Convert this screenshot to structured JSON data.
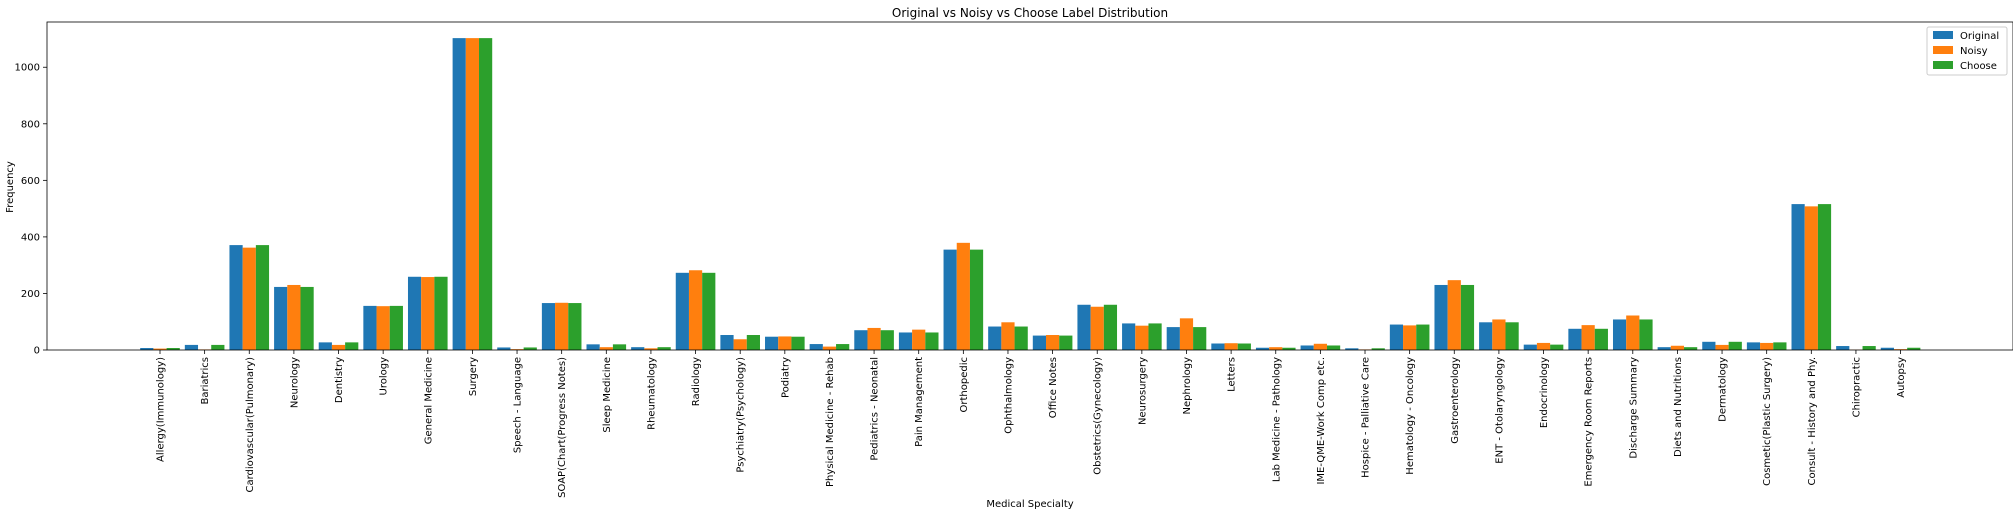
{
  "chart_data": {
    "type": "bar",
    "title": "Original vs Noisy vs Choose Label Distribution",
    "xlabel": "Medical Specialty",
    "ylabel": "Frequency",
    "ylim": [
      0,
      1160
    ],
    "yticks": [
      0,
      200,
      400,
      600,
      800,
      1000
    ],
    "grid": false,
    "legend_position": "top-right",
    "categories": [
      "Allergy(Immunology)",
      "Bariatrics",
      "Cardiovascular(Pulmonary)",
      "Neurology",
      "Dentistry",
      "Urology",
      "General Medicine",
      "Surgery",
      "Speech - Language",
      "SOAP(Chart(Progress Notes)",
      "Sleep Medicine",
      "Rheumatology",
      "Radiology",
      "Psychiatry(Psychology)",
      "Podiatry",
      "Physical Medicine - Rehab",
      "Pediatrics - Neonatal",
      "Pain Management",
      "Orthopedic",
      "Ophthalmology",
      "Office Notes",
      "Obstetrics(Gynecology)",
      "Neurosurgery",
      "Nephrology",
      "Letters",
      "Lab Medicine - Pathology",
      "IME-QME-Work Comp etc.",
      "Hospice - Palliative Care",
      "Hematology - Oncology",
      "Gastroenterology",
      "ENT - Otolaryngology",
      "Endocrinology",
      "Emergency Room Reports",
      "Discharge Summary",
      "Diets and Nutritions",
      "Dermatology",
      "Cosmetic(Plastic Surgery)",
      "Consult - History and Phy.",
      "Chiropractic",
      "Autopsy"
    ],
    "series": [
      {
        "name": "Original",
        "color": "#1f77b4",
        "values": [
          7,
          18,
          371,
          223,
          27,
          156,
          259,
          1103,
          9,
          166,
          20,
          10,
          273,
          53,
          47,
          21,
          70,
          62,
          355,
          83,
          51,
          160,
          94,
          81,
          23,
          8,
          16,
          6,
          90,
          230,
          98,
          19,
          75,
          108,
          10,
          29,
          27,
          516,
          14,
          8
        ]
      },
      {
        "name": "Noisy",
        "color": "#ff7f0e",
        "values": [
          5,
          2,
          362,
          230,
          18,
          155,
          258,
          1103,
          3,
          167,
          10,
          6,
          282,
          38,
          48,
          12,
          78,
          72,
          379,
          98,
          53,
          153,
          86,
          112,
          24,
          10,
          22,
          2,
          87,
          247,
          108,
          25,
          88,
          122,
          15,
          18,
          25,
          508,
          1,
          3
        ]
      },
      {
        "name": "Choose",
        "color": "#2ca02c",
        "values": [
          7,
          18,
          371,
          223,
          27,
          156,
          259,
          1103,
          9,
          166,
          20,
          10,
          273,
          53,
          47,
          21,
          70,
          62,
          355,
          83,
          51,
          160,
          94,
          81,
          23,
          8,
          16,
          6,
          90,
          230,
          98,
          19,
          75,
          108,
          10,
          29,
          27,
          516,
          14,
          8
        ]
      }
    ]
  }
}
